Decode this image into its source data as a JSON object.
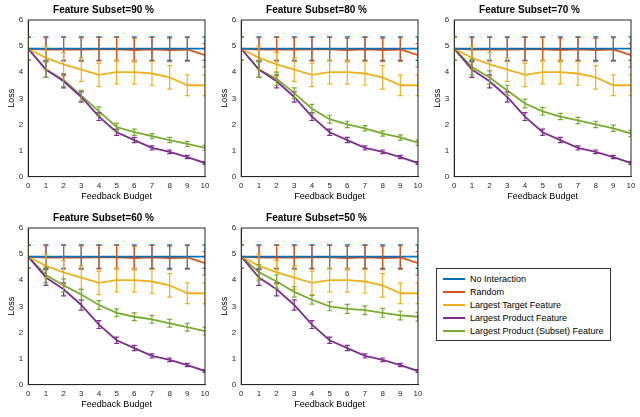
{
  "chart_data": [
    {
      "type": "line",
      "title": "Feature Subset=90 %",
      "x_label": "Feedback Budget",
      "y_label": "Loss",
      "x": [
        0,
        1,
        2,
        3,
        4,
        5,
        6,
        7,
        8,
        9,
        10
      ],
      "xlim": [
        0,
        10
      ],
      "xticks": [
        0,
        1,
        2,
        3,
        4,
        5,
        6,
        7,
        8,
        9,
        10
      ],
      "ylim": [
        0,
        6
      ],
      "yticks": [
        0,
        1,
        2,
        3,
        4,
        5,
        6
      ],
      "grid": false,
      "series": [
        {
          "name": "No Interaction",
          "color": "#0072bd",
          "values": [
            4.9,
            4.9,
            4.9,
            4.9,
            4.9,
            4.9,
            4.9,
            4.9,
            4.9,
            4.9,
            4.9
          ],
          "errors": [
            0.45,
            0.45,
            0.45,
            0.45,
            0.45,
            0.45,
            0.45,
            0.45,
            0.45,
            0.45,
            0.45
          ]
        },
        {
          "name": "Random",
          "color": "#d95319",
          "values": [
            4.9,
            4.87,
            4.88,
            4.87,
            4.88,
            4.88,
            4.85,
            4.88,
            4.85,
            4.87,
            4.65
          ],
          "errors": [
            0.45,
            0.45,
            0.45,
            0.45,
            0.45,
            0.45,
            0.45,
            0.45,
            0.45,
            0.45,
            0.45
          ]
        },
        {
          "name": "Largest Target Feature",
          "color": "#edb120",
          "values": [
            4.9,
            4.55,
            4.3,
            4.1,
            3.9,
            4.0,
            4.0,
            3.95,
            3.8,
            3.5,
            3.5
          ],
          "errors": [
            0.45,
            0.45,
            0.45,
            0.45,
            0.45,
            0.45,
            0.45,
            0.45,
            0.45,
            0.4,
            0.4
          ]
        },
        {
          "name": "Largest Product Feature",
          "color": "#7e2f8e",
          "values": [
            4.9,
            4.1,
            3.65,
            3.05,
            2.3,
            1.7,
            1.4,
            1.1,
            0.95,
            0.75,
            0.52
          ],
          "errors": [
            0.45,
            0.3,
            0.25,
            0.2,
            0.15,
            0.12,
            0.1,
            0.08,
            0.07,
            0.06,
            0.05
          ]
        },
        {
          "name": "Largest Product (Subset) Feature",
          "color": "#77ac30",
          "values": [
            4.9,
            4.1,
            3.7,
            3.1,
            2.5,
            1.9,
            1.7,
            1.55,
            1.4,
            1.25,
            1.1
          ],
          "errors": [
            0.45,
            0.3,
            0.25,
            0.2,
            0.17,
            0.15,
            0.12,
            0.1,
            0.1,
            0.1,
            0.1
          ]
        }
      ]
    },
    {
      "type": "line",
      "title": "Feature Subset=80 %",
      "x_label": "Feedback Budget",
      "y_label": "Loss",
      "x": [
        0,
        1,
        2,
        3,
        4,
        5,
        6,
        7,
        8,
        9,
        10
      ],
      "xlim": [
        0,
        10
      ],
      "xticks": [
        0,
        1,
        2,
        3,
        4,
        5,
        6,
        7,
        8,
        9,
        10
      ],
      "ylim": [
        0,
        6
      ],
      "yticks": [
        0,
        1,
        2,
        3,
        4,
        5,
        6
      ],
      "grid": false,
      "series": [
        {
          "name": "No Interaction",
          "color": "#0072bd",
          "values": [
            4.9,
            4.9,
            4.9,
            4.9,
            4.9,
            4.9,
            4.9,
            4.9,
            4.9,
            4.9,
            4.9
          ],
          "errors": [
            0.45,
            0.45,
            0.45,
            0.45,
            0.45,
            0.45,
            0.45,
            0.45,
            0.45,
            0.45,
            0.45
          ]
        },
        {
          "name": "Random",
          "color": "#d95319",
          "values": [
            4.9,
            4.87,
            4.88,
            4.87,
            4.88,
            4.88,
            4.85,
            4.88,
            4.85,
            4.87,
            4.65
          ],
          "errors": [
            0.45,
            0.45,
            0.45,
            0.45,
            0.45,
            0.45,
            0.45,
            0.45,
            0.45,
            0.45,
            0.45
          ]
        },
        {
          "name": "Largest Target Feature",
          "color": "#edb120",
          "values": [
            4.9,
            4.55,
            4.3,
            4.1,
            3.9,
            4.0,
            4.0,
            3.95,
            3.8,
            3.5,
            3.5
          ],
          "errors": [
            0.45,
            0.45,
            0.45,
            0.45,
            0.45,
            0.45,
            0.45,
            0.45,
            0.45,
            0.4,
            0.4
          ]
        },
        {
          "name": "Largest Product Feature",
          "color": "#7e2f8e",
          "values": [
            4.9,
            4.1,
            3.65,
            3.05,
            2.3,
            1.7,
            1.4,
            1.1,
            0.95,
            0.75,
            0.52
          ],
          "errors": [
            0.45,
            0.3,
            0.25,
            0.2,
            0.15,
            0.12,
            0.1,
            0.08,
            0.07,
            0.06,
            0.05
          ]
        },
        {
          "name": "Largest Product (Subset) Feature",
          "color": "#77ac30",
          "values": [
            4.9,
            4.1,
            3.75,
            3.2,
            2.6,
            2.2,
            2.0,
            1.85,
            1.65,
            1.5,
            1.3
          ],
          "errors": [
            0.45,
            0.3,
            0.25,
            0.2,
            0.17,
            0.15,
            0.12,
            0.1,
            0.1,
            0.1,
            0.1
          ]
        }
      ]
    },
    {
      "type": "line",
      "title": "Feature Subset=70 %",
      "x_label": "Feedback Budget",
      "y_label": "Loss",
      "x": [
        0,
        1,
        2,
        3,
        4,
        5,
        6,
        7,
        8,
        9,
        10
      ],
      "xlim": [
        0,
        10
      ],
      "xticks": [
        0,
        1,
        2,
        3,
        4,
        5,
        6,
        7,
        8,
        9,
        10
      ],
      "ylim": [
        0,
        6
      ],
      "yticks": [
        0,
        1,
        2,
        3,
        4,
        5,
        6
      ],
      "grid": false,
      "series": [
        {
          "name": "No Interaction",
          "color": "#0072bd",
          "values": [
            4.9,
            4.9,
            4.9,
            4.9,
            4.9,
            4.9,
            4.9,
            4.9,
            4.9,
            4.9,
            4.9
          ],
          "errors": [
            0.45,
            0.45,
            0.45,
            0.45,
            0.45,
            0.45,
            0.45,
            0.45,
            0.45,
            0.45,
            0.45
          ]
        },
        {
          "name": "Random",
          "color": "#d95319",
          "values": [
            4.9,
            4.87,
            4.88,
            4.87,
            4.88,
            4.88,
            4.85,
            4.88,
            4.85,
            4.87,
            4.65
          ],
          "errors": [
            0.45,
            0.45,
            0.45,
            0.45,
            0.45,
            0.45,
            0.45,
            0.45,
            0.45,
            0.45,
            0.45
          ]
        },
        {
          "name": "Largest Target Feature",
          "color": "#edb120",
          "values": [
            4.9,
            4.55,
            4.3,
            4.1,
            3.9,
            4.0,
            4.0,
            3.95,
            3.8,
            3.5,
            3.5
          ],
          "errors": [
            0.45,
            0.45,
            0.45,
            0.45,
            0.45,
            0.45,
            0.45,
            0.45,
            0.45,
            0.4,
            0.4
          ]
        },
        {
          "name": "Largest Product Feature",
          "color": "#7e2f8e",
          "values": [
            4.9,
            4.1,
            3.65,
            3.05,
            2.3,
            1.7,
            1.4,
            1.1,
            0.95,
            0.75,
            0.52
          ],
          "errors": [
            0.45,
            0.3,
            0.25,
            0.2,
            0.15,
            0.12,
            0.1,
            0.08,
            0.07,
            0.06,
            0.05
          ]
        },
        {
          "name": "Largest Product (Subset) Feature",
          "color": "#77ac30",
          "values": [
            4.9,
            4.2,
            3.8,
            3.3,
            2.8,
            2.5,
            2.3,
            2.15,
            2.0,
            1.85,
            1.65
          ],
          "errors": [
            0.45,
            0.3,
            0.25,
            0.2,
            0.17,
            0.15,
            0.12,
            0.12,
            0.12,
            0.12,
            0.12
          ]
        }
      ]
    },
    {
      "type": "line",
      "title": "Feature Subset=60 %",
      "x_label": "Feedback Budget",
      "y_label": "Loss",
      "x": [
        0,
        1,
        2,
        3,
        4,
        5,
        6,
        7,
        8,
        9,
        10
      ],
      "xlim": [
        0,
        10
      ],
      "xticks": [
        0,
        1,
        2,
        3,
        4,
        5,
        6,
        7,
        8,
        9,
        10
      ],
      "ylim": [
        0,
        6
      ],
      "yticks": [
        0,
        1,
        2,
        3,
        4,
        5,
        6
      ],
      "grid": false,
      "series": [
        {
          "name": "No Interaction",
          "color": "#0072bd",
          "values": [
            4.9,
            4.9,
            4.9,
            4.9,
            4.9,
            4.9,
            4.9,
            4.9,
            4.9,
            4.9,
            4.9
          ],
          "errors": [
            0.45,
            0.45,
            0.45,
            0.45,
            0.45,
            0.45,
            0.45,
            0.45,
            0.45,
            0.45,
            0.45
          ]
        },
        {
          "name": "Random",
          "color": "#d95319",
          "values": [
            4.9,
            4.87,
            4.88,
            4.87,
            4.88,
            4.88,
            4.85,
            4.88,
            4.85,
            4.87,
            4.65
          ],
          "errors": [
            0.45,
            0.45,
            0.45,
            0.45,
            0.45,
            0.45,
            0.45,
            0.45,
            0.45,
            0.45,
            0.45
          ]
        },
        {
          "name": "Largest Target Feature",
          "color": "#edb120",
          "values": [
            4.9,
            4.55,
            4.3,
            4.1,
            3.9,
            4.0,
            4.0,
            3.95,
            3.8,
            3.5,
            3.5
          ],
          "errors": [
            0.45,
            0.45,
            0.45,
            0.45,
            0.45,
            0.45,
            0.45,
            0.45,
            0.45,
            0.4,
            0.4
          ]
        },
        {
          "name": "Largest Product Feature",
          "color": "#7e2f8e",
          "values": [
            4.9,
            4.1,
            3.65,
            3.05,
            2.3,
            1.7,
            1.4,
            1.1,
            0.95,
            0.75,
            0.52
          ],
          "errors": [
            0.45,
            0.3,
            0.25,
            0.2,
            0.15,
            0.12,
            0.1,
            0.08,
            0.07,
            0.06,
            0.05
          ]
        },
        {
          "name": "Largest Product (Subset) Feature",
          "color": "#77ac30",
          "values": [
            4.9,
            4.2,
            3.8,
            3.45,
            3.05,
            2.75,
            2.6,
            2.5,
            2.35,
            2.2,
            2.05
          ],
          "errors": [
            0.45,
            0.3,
            0.25,
            0.2,
            0.17,
            0.15,
            0.15,
            0.15,
            0.15,
            0.15,
            0.15
          ]
        }
      ]
    },
    {
      "type": "line",
      "title": "Feature Subset=50 %",
      "x_label": "Feedback Budget",
      "y_label": "Loss",
      "x": [
        0,
        1,
        2,
        3,
        4,
        5,
        6,
        7,
        8,
        9,
        10
      ],
      "xlim": [
        0,
        10
      ],
      "xticks": [
        0,
        1,
        2,
        3,
        4,
        5,
        6,
        7,
        8,
        9,
        10
      ],
      "ylim": [
        0,
        6
      ],
      "yticks": [
        0,
        1,
        2,
        3,
        4,
        5,
        6
      ],
      "grid": false,
      "legend": "right",
      "series": [
        {
          "name": "No Interaction",
          "color": "#0072bd",
          "values": [
            4.9,
            4.9,
            4.9,
            4.9,
            4.9,
            4.9,
            4.9,
            4.9,
            4.9,
            4.9,
            4.9
          ],
          "errors": [
            0.45,
            0.45,
            0.45,
            0.45,
            0.45,
            0.45,
            0.45,
            0.45,
            0.45,
            0.45,
            0.45
          ]
        },
        {
          "name": "Random",
          "color": "#d95319",
          "values": [
            4.9,
            4.87,
            4.88,
            4.87,
            4.88,
            4.88,
            4.85,
            4.88,
            4.85,
            4.87,
            4.65
          ],
          "errors": [
            0.45,
            0.45,
            0.45,
            0.45,
            0.45,
            0.45,
            0.45,
            0.45,
            0.45,
            0.45,
            0.45
          ]
        },
        {
          "name": "Largest Target Feature",
          "color": "#edb120",
          "values": [
            4.9,
            4.55,
            4.3,
            4.1,
            3.9,
            4.0,
            4.0,
            3.95,
            3.8,
            3.5,
            3.5
          ],
          "errors": [
            0.45,
            0.45,
            0.45,
            0.45,
            0.45,
            0.45,
            0.45,
            0.45,
            0.45,
            0.4,
            0.4
          ]
        },
        {
          "name": "Largest Product Feature",
          "color": "#7e2f8e",
          "values": [
            4.9,
            4.1,
            3.65,
            3.05,
            2.3,
            1.7,
            1.4,
            1.1,
            0.95,
            0.75,
            0.52
          ],
          "errors": [
            0.45,
            0.3,
            0.25,
            0.2,
            0.15,
            0.12,
            0.1,
            0.08,
            0.07,
            0.06,
            0.05
          ]
        },
        {
          "name": "Largest Product (Subset) Feature",
          "color": "#77ac30",
          "values": [
            4.9,
            4.3,
            3.95,
            3.55,
            3.25,
            3.0,
            2.9,
            2.85,
            2.75,
            2.65,
            2.6
          ],
          "errors": [
            0.45,
            0.3,
            0.25,
            0.2,
            0.17,
            0.17,
            0.17,
            0.17,
            0.17,
            0.17,
            0.17
          ]
        }
      ]
    }
  ]
}
